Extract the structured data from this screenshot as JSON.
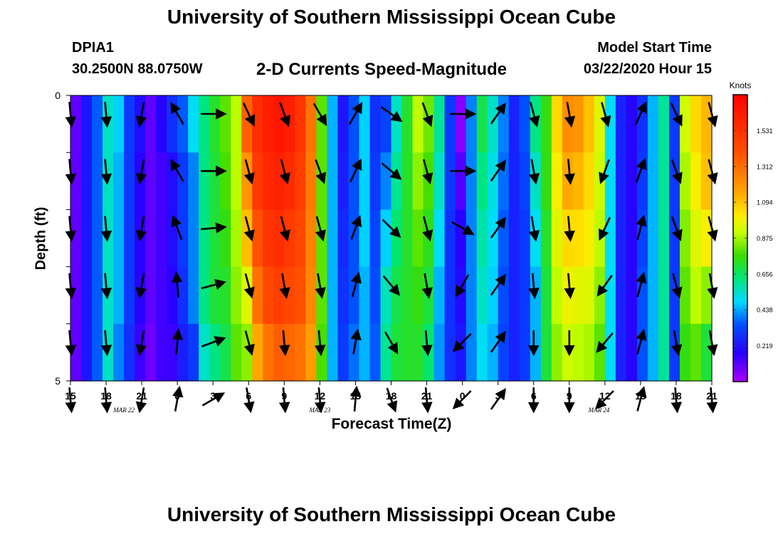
{
  "header": {
    "title": "University of Southern Mississippi Ocean Cube",
    "station_id": "DPIA1",
    "coordinates": "30.2500N 88.0750W",
    "subtitle": "2-D Currents Speed-Magnitude",
    "model_start_label": "Model Start Time",
    "model_start_time": "03/22/2020 Hour 15"
  },
  "footer": {
    "title": "University of Southern Mississippi Ocean Cube"
  },
  "chart_data": {
    "type": "heatmap",
    "title": "2-D Currents Speed-Magnitude",
    "xlabel": "Forecast Time(Z)",
    "ylabel": "Depth (ft)",
    "x_range_hours": [
      0,
      54
    ],
    "ylim": [
      0,
      5
    ],
    "y_ticks": [
      "0",
      "5"
    ],
    "x_ticks": [
      {
        "hour": 0,
        "label": "15"
      },
      {
        "hour": 3,
        "label": "18"
      },
      {
        "hour": 6,
        "label": "21"
      },
      {
        "hour": 9,
        "label": "0"
      },
      {
        "hour": 12,
        "label": "3"
      },
      {
        "hour": 15,
        "label": "6"
      },
      {
        "hour": 18,
        "label": "9"
      },
      {
        "hour": 21,
        "label": "12"
      },
      {
        "hour": 24,
        "label": "15"
      },
      {
        "hour": 27,
        "label": "18"
      },
      {
        "hour": 30,
        "label": "21"
      },
      {
        "hour": 33,
        "label": "0"
      },
      {
        "hour": 36,
        "label": "3"
      },
      {
        "hour": 39,
        "label": "6"
      },
      {
        "hour": 42,
        "label": "9"
      },
      {
        "hour": 45,
        "label": "12"
      },
      {
        "hour": 48,
        "label": "15"
      },
      {
        "hour": 51,
        "label": "18"
      },
      {
        "hour": 54,
        "label": "21"
      }
    ],
    "date_labels": [
      {
        "hour": 4.5,
        "label": "MAR 22"
      },
      {
        "hour": 21,
        "label": "MAR 23"
      },
      {
        "hour": 44.5,
        "label": "MAR 24"
      }
    ],
    "colorbar": {
      "unit": "Knots",
      "min": 0.0,
      "max": 1.75,
      "ticks": [
        "1.531",
        "1.312",
        "1.094",
        "0.875",
        "0.656",
        "0.438",
        "0.219"
      ]
    },
    "depth_levels": 5,
    "speed_columns": [
      [
        0.1,
        0.1,
        0.1,
        0.1,
        0.1
      ],
      [
        0.22,
        0.22,
        0.22,
        0.22,
        0.22
      ],
      [
        0.36,
        0.36,
        0.36,
        0.36,
        0.36
      ],
      [
        0.55,
        0.55,
        0.55,
        0.55,
        0.55
      ],
      [
        0.48,
        0.45,
        0.45,
        0.45,
        0.4
      ],
      [
        0.3,
        0.3,
        0.3,
        0.3,
        0.28
      ],
      [
        0.2,
        0.18,
        0.18,
        0.18,
        0.15
      ],
      [
        0.1,
        0.1,
        0.1,
        0.1,
        0.08
      ],
      [
        0.18,
        0.14,
        0.14,
        0.14,
        0.14
      ],
      [
        0.28,
        0.2,
        0.2,
        0.18,
        0.15
      ],
      [
        0.36,
        0.3,
        0.3,
        0.28,
        0.24
      ],
      [
        0.5,
        0.4,
        0.4,
        0.4,
        0.3
      ],
      [
        0.62,
        0.62,
        0.62,
        0.62,
        0.55
      ],
      [
        0.72,
        0.7,
        0.7,
        0.7,
        0.62
      ],
      [
        0.8,
        0.78,
        0.75,
        0.72,
        0.68
      ],
      [
        0.9,
        0.9,
        0.88,
        0.85,
        0.8
      ],
      [
        1.35,
        1.2,
        1.1,
        0.95,
        0.85
      ],
      [
        1.55,
        1.5,
        1.4,
        1.3,
        1.15
      ],
      [
        1.62,
        1.58,
        1.52,
        1.44,
        1.3
      ],
      [
        1.66,
        1.6,
        1.55,
        1.48,
        1.36
      ],
      [
        1.62,
        1.56,
        1.5,
        1.44,
        1.34
      ],
      [
        1.52,
        1.48,
        1.44,
        1.4,
        1.3
      ],
      [
        1.3,
        1.28,
        1.26,
        1.24,
        1.18
      ],
      [
        0.8,
        0.8,
        0.8,
        0.8,
        0.78
      ],
      [
        0.45,
        0.45,
        0.45,
        0.45,
        0.45
      ],
      [
        0.22,
        0.24,
        0.26,
        0.28,
        0.3
      ],
      [
        0.35,
        0.35,
        0.35,
        0.35,
        0.38
      ],
      [
        0.48,
        0.48,
        0.48,
        0.45,
        0.45
      ],
      [
        0.28,
        0.3,
        0.32,
        0.34,
        0.36
      ],
      [
        0.32,
        0.4,
        0.48,
        0.56,
        0.6
      ],
      [
        0.55,
        0.6,
        0.64,
        0.68,
        0.7
      ],
      [
        0.72,
        0.72,
        0.72,
        0.72,
        0.72
      ],
      [
        0.9,
        0.85,
        0.8,
        0.75,
        0.72
      ],
      [
        0.82,
        0.78,
        0.74,
        0.7,
        0.64
      ],
      [
        0.6,
        0.55,
        0.5,
        0.45,
        0.42
      ],
      [
        0.3,
        0.3,
        0.28,
        0.28,
        0.28
      ],
      [
        0.05,
        0.12,
        0.18,
        0.2,
        0.22
      ],
      [
        0.4,
        0.4,
        0.4,
        0.4,
        0.4
      ],
      [
        0.68,
        0.62,
        0.58,
        0.55,
        0.5
      ],
      [
        0.55,
        0.52,
        0.5,
        0.48,
        0.45
      ],
      [
        0.4,
        0.38,
        0.36,
        0.34,
        0.32
      ],
      [
        0.25,
        0.25,
        0.25,
        0.25,
        0.25
      ],
      [
        0.35,
        0.32,
        0.3,
        0.3,
        0.3
      ],
      [
        0.62,
        0.55,
        0.5,
        0.45,
        0.45
      ],
      [
        0.75,
        0.75,
        0.72,
        0.7,
        0.7
      ],
      [
        1.05,
        1.0,
        0.95,
        0.9,
        0.85
      ],
      [
        1.22,
        1.15,
        1.05,
        0.98,
        0.92
      ],
      [
        1.2,
        1.12,
        1.04,
        0.96,
        0.9
      ],
      [
        1.1,
        1.05,
        1.0,
        0.95,
        0.88
      ],
      [
        0.95,
        0.92,
        0.9,
        0.85,
        0.8
      ],
      [
        0.5,
        0.5,
        0.5,
        0.5,
        0.5
      ],
      [
        0.25,
        0.25,
        0.25,
        0.25,
        0.25
      ],
      [
        0.18,
        0.18,
        0.18,
        0.18,
        0.18
      ],
      [
        0.28,
        0.3,
        0.32,
        0.35,
        0.35
      ],
      [
        0.45,
        0.45,
        0.45,
        0.45,
        0.45
      ],
      [
        0.6,
        0.6,
        0.6,
        0.6,
        0.6
      ],
      [
        0.3,
        0.3,
        0.3,
        0.3,
        0.3
      ],
      [
        0.92,
        0.88,
        0.84,
        0.8,
        0.75
      ],
      [
        1.05,
        1.0,
        0.95,
        0.9,
        0.8
      ],
      [
        1.12,
        1.1,
        1.0,
        0.85,
        0.7
      ]
    ],
    "vector_hours": [
      0,
      3,
      6,
      9,
      12,
      15,
      18,
      21,
      24,
      27,
      30,
      33,
      36,
      39,
      42,
      45,
      48,
      51,
      54
    ],
    "vector_directions_deg": [
      [
        175,
        175,
        175,
        175,
        175,
        175
      ],
      [
        175,
        175,
        175,
        175,
        175,
        175
      ],
      [
        190,
        190,
        190,
        190,
        190,
        190
      ],
      [
        330,
        330,
        340,
        355,
        5,
        10
      ],
      [
        90,
        90,
        85,
        75,
        70,
        60
      ],
      [
        155,
        165,
        165,
        165,
        165,
        170
      ],
      [
        160,
        165,
        165,
        170,
        175,
        175
      ],
      [
        150,
        160,
        165,
        170,
        175,
        175
      ],
      [
        30,
        25,
        20,
        15,
        10,
        5
      ],
      [
        125,
        130,
        135,
        140,
        150,
        160
      ],
      [
        160,
        165,
        165,
        170,
        175,
        175
      ],
      [
        90,
        90,
        120,
        210,
        225,
        225
      ],
      [
        35,
        35,
        35,
        35,
        35,
        35
      ],
      [
        165,
        170,
        170,
        175,
        180,
        180
      ],
      [
        170,
        175,
        175,
        175,
        180,
        180
      ],
      [
        165,
        200,
        205,
        215,
        220,
        225
      ],
      [
        25,
        20,
        15,
        15,
        15,
        15
      ],
      [
        155,
        160,
        160,
        165,
        170,
        175
      ],
      [
        165,
        165,
        165,
        170,
        170,
        175
      ]
    ],
    "grid": false,
    "legend": "colorbar right"
  }
}
